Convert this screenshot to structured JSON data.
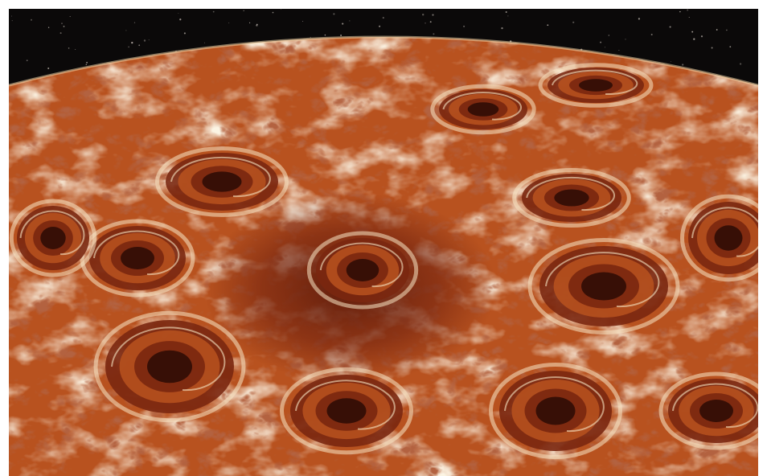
{
  "image": {
    "subject": "planet-polar-cyclones",
    "colors": {
      "space": "#0b0909",
      "limb_glow": "#f3d6a8",
      "cloud_light": "#f7e6c4",
      "cloud_mid": "#d98a4e",
      "cloud_warm": "#b8521f",
      "cloud_dark": "#7a2710",
      "vortex_core": "#2a0b05"
    }
  }
}
